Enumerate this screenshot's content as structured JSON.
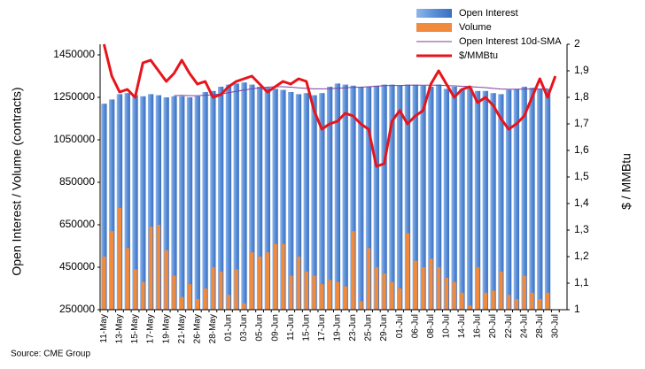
{
  "chart_data": {
    "type": "bar",
    "y_label": "Open Interest / Volume (contracts)",
    "y2_label": "$ / MMBtu",
    "source": "Source: CME Group",
    "legend": "top-right",
    "categories": [
      "11-May",
      null,
      "13-May",
      null,
      "15-May",
      null,
      "17-May",
      null,
      "19-May",
      null,
      "21-May",
      null,
      "26-May",
      null,
      "28-May",
      null,
      "01-Jun",
      null,
      "03-Jun",
      null,
      "05-Jun",
      null,
      "09-Jun",
      null,
      "11-Jun",
      null,
      "15-Jun",
      null,
      "17-Jun",
      null,
      "19-Jun",
      null,
      "23-Jun",
      null,
      "25-Jun",
      null,
      "29-Jun",
      null,
      "01-Jul",
      null,
      "06-Jul",
      null,
      "08-Jul",
      null,
      "10-Jul",
      null,
      "14-Jul",
      null,
      "16-Jul",
      null,
      "20-Jul",
      null,
      "22-Jul",
      null,
      "24-Jul",
      null,
      "28-Jul",
      null,
      "30-Jul",
      null
    ],
    "series": [
      {
        "name": "Open Interest",
        "type": "bar",
        "color": "#5b8fd9",
        "values": [
          1220000,
          1240000,
          1265000,
          1270000,
          1260000,
          1255000,
          1265000,
          1260000,
          1250000,
          1255000,
          1255000,
          1250000,
          1255000,
          1275000,
          1280000,
          1300000,
          1310000,
          1315000,
          1320000,
          1310000,
          1300000,
          1295000,
          1290000,
          1285000,
          1275000,
          1265000,
          1270000,
          1260000,
          1270000,
          1300000,
          1315000,
          1310000,
          1305000,
          1300000,
          1300000,
          1305000,
          1310000,
          1310000,
          1305000,
          1310000,
          1310000,
          1305000,
          1300000,
          1310000,
          1290000,
          1300000,
          1290000,
          1295000,
          1280000,
          1280000,
          1270000,
          1265000,
          1285000,
          1290000,
          1300000,
          1295000,
          1290000,
          1290000,
          null,
          null
        ]
      },
      {
        "name": "Volume",
        "type": "bar",
        "color": "#f08a3c",
        "values": [
          500000,
          620000,
          730000,
          540000,
          440000,
          380000,
          640000,
          650000,
          530000,
          410000,
          310000,
          370000,
          300000,
          350000,
          450000,
          430000,
          320000,
          440000,
          280000,
          520000,
          500000,
          520000,
          560000,
          560000,
          410000,
          500000,
          430000,
          410000,
          370000,
          390000,
          380000,
          360000,
          620000,
          290000,
          540000,
          450000,
          420000,
          380000,
          350000,
          610000,
          480000,
          450000,
          490000,
          450000,
          400000,
          380000,
          330000,
          270000,
          450000,
          330000,
          340000,
          430000,
          320000,
          300000,
          410000,
          330000,
          300000,
          330000,
          null,
          null
        ]
      },
      {
        "name": "Open Interest 10d-SMA",
        "type": "line",
        "color": "#7b3f9e",
        "values": [
          null,
          null,
          null,
          null,
          null,
          null,
          null,
          null,
          null,
          1258000,
          1259000,
          1258000,
          1258000,
          1260000,
          1262000,
          1266000,
          1272000,
          1278000,
          1284000,
          1290000,
          1294000,
          1298000,
          1300000,
          1300000,
          1298000,
          1295000,
          1292000,
          1290000,
          1290000,
          1291000,
          1293000,
          1295000,
          1297000,
          1298000,
          1300000,
          1302000,
          1305000,
          1306000,
          1306000,
          1307000,
          1307000,
          1307000,
          1307000,
          1307000,
          1305000,
          1304000,
          1302000,
          1301000,
          1298000,
          1296000,
          1292000,
          1289000,
          1288000,
          1288000,
          1289000,
          1289000,
          1289000,
          1290000,
          null,
          null
        ]
      },
      {
        "name": "$/MMBtu",
        "type": "line",
        "axis": "y2",
        "color": "#e8141b",
        "values": [
          2.0,
          1.88,
          1.82,
          1.83,
          1.8,
          1.93,
          1.94,
          1.9,
          1.86,
          1.89,
          1.94,
          1.89,
          1.85,
          1.86,
          1.8,
          1.81,
          1.84,
          1.86,
          1.87,
          1.88,
          1.85,
          1.82,
          1.84,
          1.86,
          1.85,
          1.87,
          1.86,
          1.75,
          1.68,
          1.7,
          1.71,
          1.74,
          1.73,
          1.7,
          1.68,
          1.54,
          1.55,
          1.71,
          1.75,
          1.7,
          1.73,
          1.75,
          1.85,
          1.9,
          1.85,
          1.8,
          1.83,
          1.84,
          1.78,
          1.8,
          1.77,
          1.72,
          1.68,
          1.7,
          1.73,
          1.8,
          1.87,
          1.8,
          1.88,
          null
        ]
      }
    ],
    "ylim": [
      250000,
      1500000
    ],
    "yticks": [
      250000,
      450000,
      650000,
      850000,
      1050000,
      1250000,
      1450000
    ],
    "y2lim": [
      1,
      2
    ],
    "y2ticks": [
      1,
      {
        "value": 1.1,
        "label": "1,1"
      },
      {
        "value": 1.2,
        "label": "1,2"
      },
      {
        "value": 1.3,
        "label": "1,3"
      },
      {
        "value": 1.4,
        "label": "1,4"
      },
      {
        "value": 1.5,
        "label": "1,5"
      },
      {
        "value": 1.6,
        "label": "1,6"
      },
      {
        "value": 1.7,
        "label": "1,7"
      },
      {
        "value": 1.8,
        "label": "1,8"
      },
      {
        "value": 1.9,
        "label": "1,9"
      },
      2
    ],
    "grid": false
  }
}
